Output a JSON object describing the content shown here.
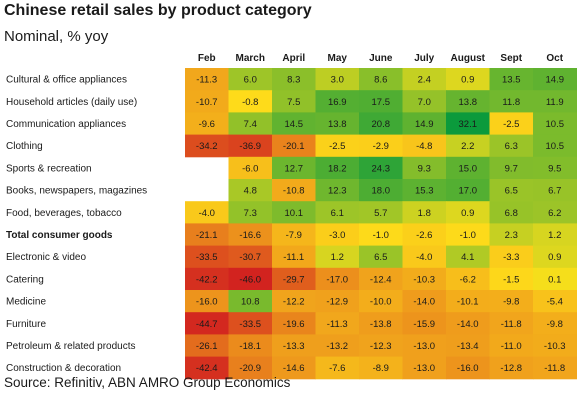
{
  "header": {
    "title": "Chinese retail sales by product category",
    "subtitle": "Nominal, % yoy"
  },
  "footer": {
    "source": "Source: Refinitiv, ABN AMRO Group Economics"
  },
  "chart_data": {
    "type": "heatmap",
    "title": "Chinese retail sales by product category",
    "subtitle": "Nominal, % yoy",
    "columns": [
      "Feb",
      "March",
      "April",
      "May",
      "June",
      "July",
      "August",
      "Sept",
      "Oct"
    ],
    "rows": [
      {
        "label": "Cultural & office appliances",
        "bold": false,
        "values": [
          -11.3,
          6.0,
          8.3,
          3.0,
          8.6,
          2.4,
          0.9,
          13.5,
          14.9
        ]
      },
      {
        "label": "Household articles (daily use)",
        "bold": false,
        "values": [
          -10.7,
          -0.8,
          7.5,
          16.9,
          17.5,
          7.0,
          13.8,
          11.8,
          11.9
        ]
      },
      {
        "label": "Communication appliances",
        "bold": false,
        "values": [
          -9.6,
          7.4,
          14.5,
          13.8,
          20.8,
          14.9,
          32.1,
          -2.5,
          10.5
        ]
      },
      {
        "label": "Clothing",
        "bold": false,
        "values": [
          -34.2,
          -36.9,
          -20.1,
          -2.5,
          -2.9,
          -4.8,
          2.2,
          6.3,
          10.5
        ]
      },
      {
        "label": "Sports & recreation",
        "bold": false,
        "values": [
          null,
          -6.0,
          12.7,
          18.2,
          24.3,
          9.3,
          15.0,
          9.7,
          9.5
        ]
      },
      {
        "label": "Books, newspapers, magazines",
        "bold": false,
        "values": [
          null,
          4.8,
          -10.8,
          12.3,
          18.0,
          15.3,
          17.0,
          6.5,
          6.7
        ]
      },
      {
        "label": "Food, beverages, tobacco",
        "bold": false,
        "values": [
          -4.0,
          7.3,
          10.1,
          6.1,
          5.7,
          1.8,
          0.9,
          6.8,
          6.2
        ]
      },
      {
        "label": "Total consumer goods",
        "bold": true,
        "values": [
          -21.1,
          -16.6,
          -7.9,
          -3.0,
          -1.0,
          -2.6,
          -1.0,
          2.3,
          1.2
        ]
      },
      {
        "label": "Electronic & video",
        "bold": false,
        "values": [
          -33.5,
          -30.7,
          -11.1,
          1.2,
          6.5,
          -4.0,
          4.1,
          -3.3,
          0.9
        ]
      },
      {
        "label": "Catering",
        "bold": false,
        "values": [
          -42.2,
          -46.0,
          -29.7,
          -17.0,
          -12.4,
          -10.3,
          -6.2,
          -1.5,
          0.1
        ]
      },
      {
        "label": "Medicine",
        "bold": false,
        "values": [
          -16.0,
          10.8,
          -12.2,
          -12.9,
          -10.0,
          -14.0,
          -10.1,
          -9.8,
          -5.4
        ]
      },
      {
        "label": "Furniture",
        "bold": false,
        "values": [
          -44.7,
          -33.5,
          -19.6,
          -11.3,
          -13.8,
          -15.9,
          -14.0,
          -11.8,
          -9.8
        ]
      },
      {
        "label": "Petroleum & related products",
        "bold": false,
        "values": [
          -26.1,
          -18.1,
          -13.3,
          -13.2,
          -12.3,
          -13.0,
          -13.4,
          -11.0,
          -10.3
        ]
      },
      {
        "label": "Construction & decoration",
        "bold": false,
        "values": [
          -42.4,
          -20.9,
          -14.6,
          -7.6,
          -8.9,
          -13.0,
          -16.0,
          -12.8,
          -11.8
        ]
      }
    ],
    "color_scale": {
      "low_color": "#d2231f",
      "mid_color": "#ffe11a",
      "high_color": "#0b9a3c",
      "low": -46.0,
      "mid": 0,
      "high": 32.1
    }
  }
}
